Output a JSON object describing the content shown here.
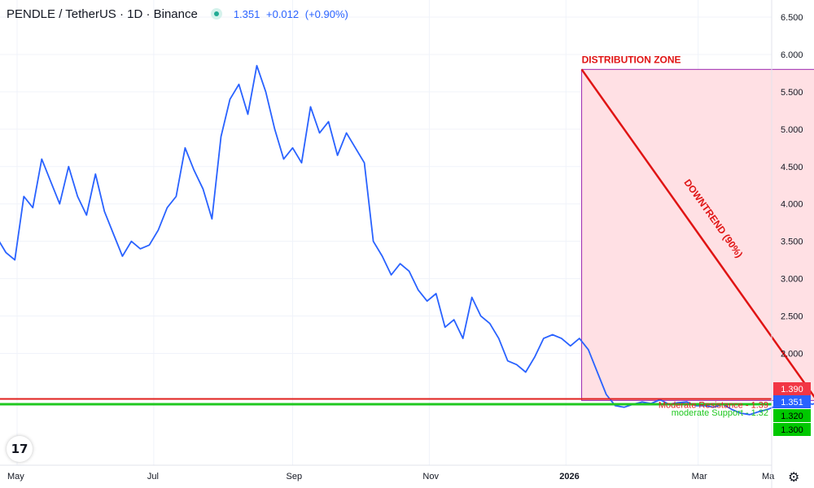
{
  "header": {
    "symbol": "PENDLE / TetherUS · 1D · Binance",
    "last": "1.351",
    "change": "+0.012",
    "change_pct": "(+0.90%)"
  },
  "colors": {
    "line": "#2962ff",
    "resistance": "#e0201e",
    "support": "#20c820",
    "zone_fill": "#ffe0e4",
    "zone_border": "#9c27b0",
    "trend": "#e01414"
  },
  "icons": {
    "logo": "tradingview-logo-icon",
    "settings": "gear-icon"
  },
  "chart_data": {
    "type": "line",
    "title": "PENDLE / TetherUS · 1D · Binance",
    "x_tick_labels": [
      "May",
      "Jul",
      "Sep",
      "Nov",
      "2026",
      "Mar",
      "Ma"
    ],
    "y_tick_labels": [
      "6.500",
      "6.000",
      "5.500",
      "5.000",
      "4.500",
      "4.000",
      "3.500",
      "3.000",
      "2.500",
      "2.000"
    ],
    "y_axis_side": "right",
    "ylim": [
      1.1,
      6.6
    ],
    "grid": true,
    "series": [
      {
        "x": [
          "2025-04-18",
          "2025-04-22",
          "2025-04-26",
          "2025-04-30",
          "2025-05-04",
          "2025-05-08",
          "2025-05-12",
          "2025-05-16",
          "2025-05-20",
          "2025-05-24",
          "2025-05-28",
          "2025-06-01",
          "2025-06-05",
          "2025-06-09",
          "2025-06-13",
          "2025-06-17",
          "2025-06-21",
          "2025-06-25",
          "2025-06-29",
          "2025-07-03",
          "2025-07-07",
          "2025-07-11",
          "2025-07-15",
          "2025-07-19",
          "2025-07-23",
          "2025-07-27",
          "2025-07-31",
          "2025-08-04",
          "2025-08-08",
          "2025-08-12",
          "2025-08-16",
          "2025-08-20",
          "2025-08-24",
          "2025-08-28",
          "2025-09-01",
          "2025-09-05",
          "2025-09-09",
          "2025-09-13",
          "2025-09-17",
          "2025-09-21",
          "2025-09-25",
          "2025-09-29",
          "2025-10-03",
          "2025-10-07",
          "2025-10-11",
          "2025-10-15",
          "2025-10-19",
          "2025-10-23",
          "2025-10-27",
          "2025-10-31",
          "2025-11-04",
          "2025-11-08",
          "2025-11-12",
          "2025-11-16",
          "2025-11-20",
          "2025-11-24",
          "2025-11-28",
          "2025-12-02",
          "2025-12-06",
          "2025-12-10",
          "2025-12-14",
          "2025-12-18",
          "2025-12-22",
          "2025-12-26",
          "2025-12-30",
          "2026-01-03",
          "2026-01-07",
          "2026-01-11",
          "2026-01-15",
          "2026-01-19",
          "2026-01-23",
          "2026-01-27",
          "2026-01-31",
          "2026-02-04",
          "2026-02-08",
          "2026-02-12",
          "2026-02-16",
          "2026-02-20",
          "2026-02-24",
          "2026-02-28",
          "2026-03-04",
          "2026-03-08",
          "2026-03-12",
          "2026-03-16",
          "2026-03-20",
          "2026-03-24",
          "2026-03-28",
          "2026-04-01",
          "2026-04-05",
          "2026-04-09",
          "2026-04-13",
          "2026-04-17",
          "2026-04-21",
          "2026-04-24"
        ],
        "values": [
          3.3,
          3.55,
          3.35,
          3.25,
          4.1,
          3.95,
          4.6,
          4.3,
          4.0,
          4.5,
          4.1,
          3.85,
          4.4,
          3.9,
          3.6,
          3.3,
          3.5,
          3.4,
          3.45,
          3.65,
          3.95,
          4.1,
          4.75,
          4.45,
          4.2,
          3.8,
          4.9,
          5.4,
          5.6,
          5.2,
          5.85,
          5.5,
          5.0,
          4.6,
          4.75,
          4.55,
          5.3,
          4.95,
          5.1,
          4.65,
          4.95,
          4.75,
          4.55,
          3.5,
          3.3,
          3.05,
          3.2,
          3.1,
          2.85,
          2.7,
          2.8,
          2.35,
          2.45,
          2.2,
          2.75,
          2.5,
          2.4,
          2.2,
          1.9,
          1.85,
          1.75,
          1.95,
          2.2,
          2.25,
          2.2,
          2.1,
          2.2,
          2.05,
          1.75,
          1.45,
          1.3,
          1.28,
          1.32,
          1.35,
          1.33,
          1.38,
          1.32,
          1.34,
          1.35,
          1.3,
          1.3,
          1.28,
          1.32,
          1.25,
          1.2,
          1.18,
          1.22,
          1.25,
          1.3,
          1.4,
          1.38,
          1.35,
          1.32,
          1.351
        ]
      }
    ],
    "annotations": {
      "zone_label": "DISTRIBUTION ZONE",
      "trend_label": "DOWNTREND (90%)",
      "resistance_label": "Moderate Resistance - 1.39",
      "support_label": "moderate Support - 1.32",
      "zone": {
        "x_start": "2026-01-08",
        "x_end": "2026-04-23",
        "y_top": 5.8,
        "y_bottom": 1.37
      },
      "trend_line": {
        "x_start": "2026-01-08",
        "x_end": "2026-04-23",
        "y_start": 5.8,
        "y_end": 1.37
      }
    },
    "price_tags": [
      {
        "value": "1.390",
        "color": "#f23645"
      },
      {
        "value": "1.351",
        "color": "#2962ff"
      },
      {
        "value": "1.320",
        "color": "#00c800"
      },
      {
        "value": "1.300",
        "color": "#00c800"
      }
    ]
  }
}
